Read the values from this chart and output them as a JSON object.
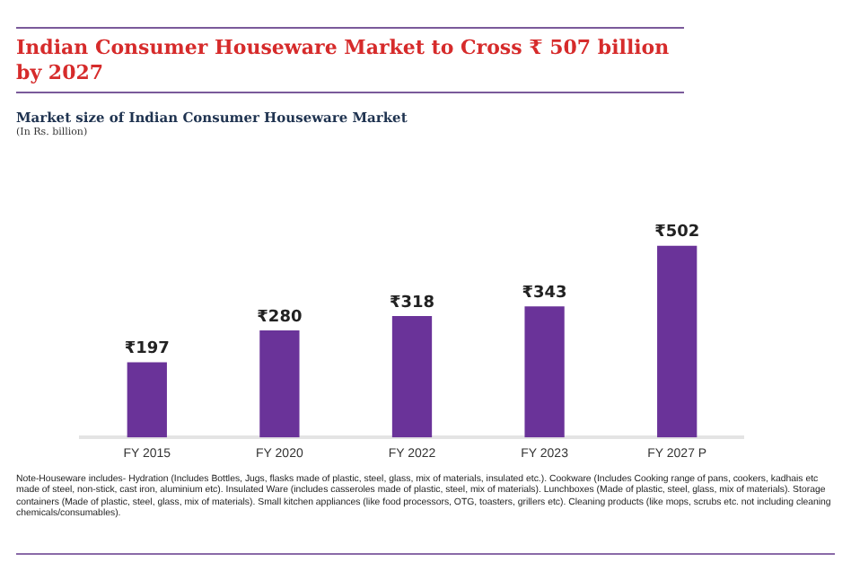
{
  "chart_data": {
    "type": "bar",
    "title": "Indian Consumer Houseware Market to Cross ₹ 507 billion by 2027",
    "subtitle": "Market size of Indian Consumer Houseware Market",
    "categories": [
      "FY 2015",
      "FY 2020",
      "FY 2022",
      "FY 2023",
      "FY 2027 P"
    ],
    "values": [
      197,
      280,
      318,
      343,
      502
    ],
    "color": "#6a3399",
    "value_labels": [
      "₹197",
      "₹280",
      "₹318",
      "₹343",
      "₹502"
    ],
    "grid": false,
    "legend": false,
    "tick_labels": "x",
    "annotations": [
      "(In Rs. billion)",
      "Note-Houseware includes- Hydration (Includes Bottles, Jugs, flasks made of plastic, steel, glass, mix of materials, insulated etc.). Cookware (Includes Cooking range of pans, cookers, kadhais etc made of steel, non-stick, cast iron, aluminium etc). Insulated Ware (includes casseroles made of plastic, steel, mix of materials). Lunchboxes (Made of plastic, steel, glass, mix of materials). Storage containers (Made of plastic, steel, glass, mix of materials). Small kitchen appliances (like food processors, OTG, toasters, grillers etc). Cleaning products (like mops, scrubs etc. not including cleaning chemicals/consumables)."
    ]
  }
}
